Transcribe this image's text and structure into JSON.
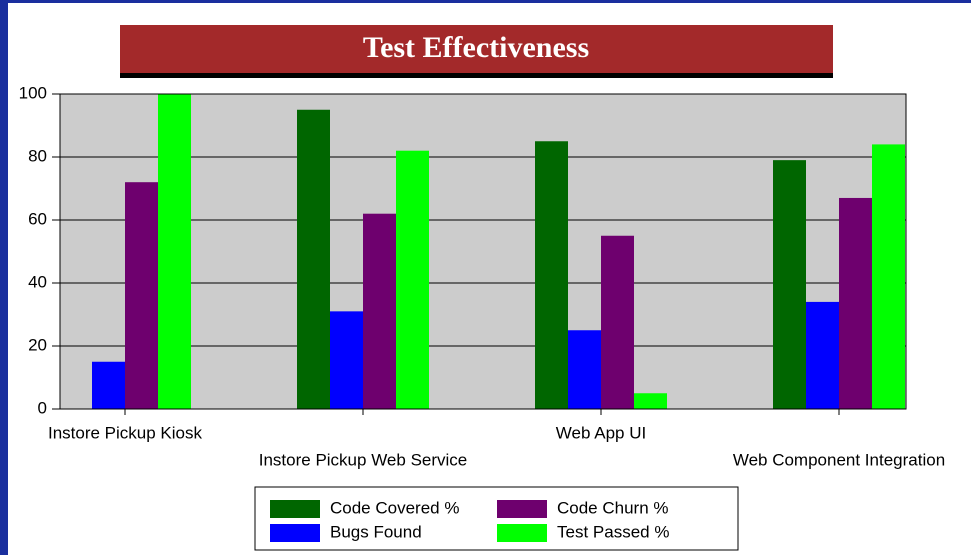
{
  "chart_data": {
    "type": "bar",
    "title": "Test Effectiveness",
    "categories": [
      "Instore Pickup Kiosk",
      "Instore Pickup Web Service",
      "Web App UI",
      "Web Component Integration"
    ],
    "series": [
      {
        "name": "Code Covered %",
        "color": "#006600",
        "values": [
          0,
          95,
          85,
          79
        ]
      },
      {
        "name": "Bugs Found",
        "color": "#0000ff",
        "values": [
          15,
          31,
          25,
          34
        ]
      },
      {
        "name": "Code Churn %",
        "color": "#6e006e",
        "values": [
          72,
          62,
          55,
          67
        ]
      },
      {
        "name": "Test Passed %",
        "color": "#00ff00",
        "values": [
          100,
          82,
          5,
          84
        ]
      }
    ],
    "ylim": [
      0,
      100
    ],
    "yticks": [
      0,
      20,
      40,
      60,
      80,
      100
    ],
    "grid": true
  }
}
